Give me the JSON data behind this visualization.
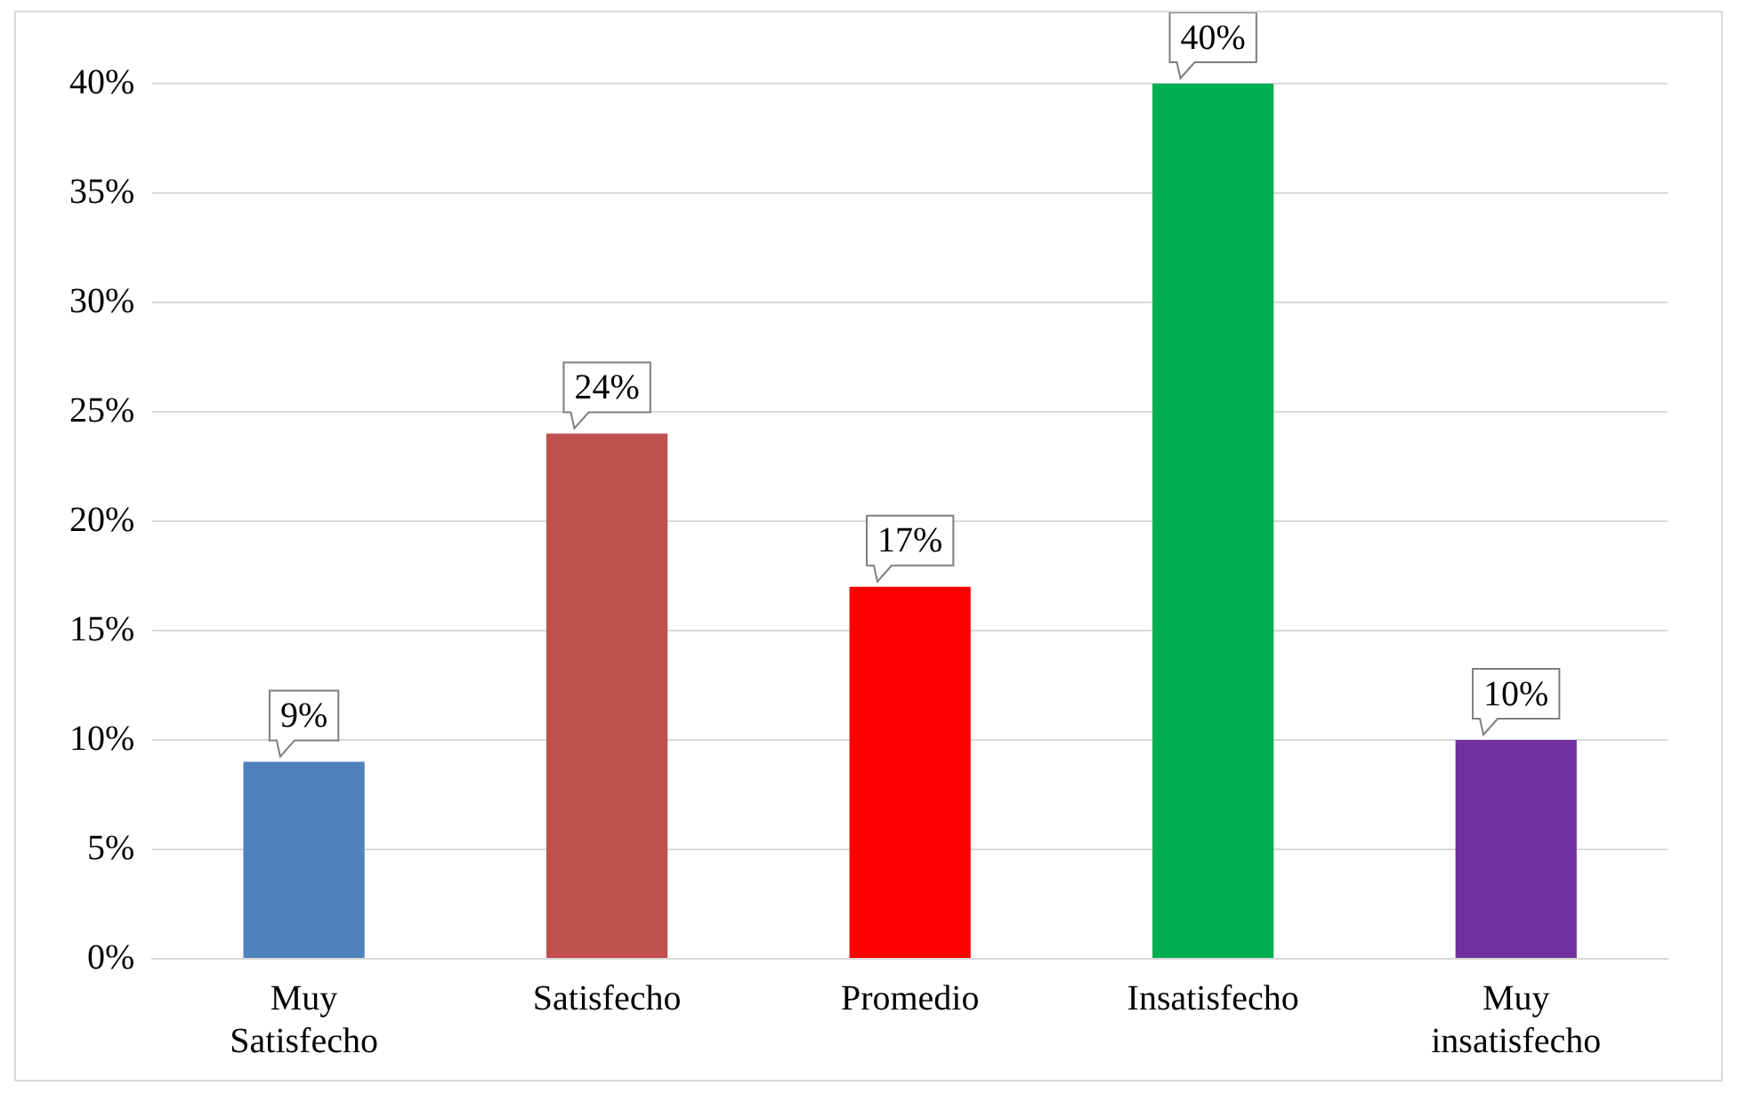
{
  "chart_data": {
    "type": "bar",
    "categories": [
      "Muy Satisfecho",
      "Satisfecho",
      "Promedio",
      "Insatisfecho",
      "Muy insatisfecho"
    ],
    "values": [
      9,
      24,
      17,
      40,
      10
    ],
    "colors": [
      "#4f81bd",
      "#c0504d",
      "#ff0000",
      "#00b050",
      "#7030a0"
    ],
    "value_labels": [
      "9%",
      "24%",
      "17%",
      "40%",
      "10%"
    ],
    "ylim": [
      0,
      40
    ],
    "yticks": [
      {
        "value": 0,
        "label": "0%"
      },
      {
        "value": 5,
        "label": "5%"
      },
      {
        "value": 10,
        "label": "10%"
      },
      {
        "value": 15,
        "label": "15%"
      },
      {
        "value": 20,
        "label": "20%"
      },
      {
        "value": 25,
        "label": "25%"
      },
      {
        "value": 30,
        "label": "30%"
      },
      {
        "value": 35,
        "label": "35%"
      },
      {
        "value": 40,
        "label": "40%"
      }
    ],
    "grid": "y",
    "legend": false
  }
}
